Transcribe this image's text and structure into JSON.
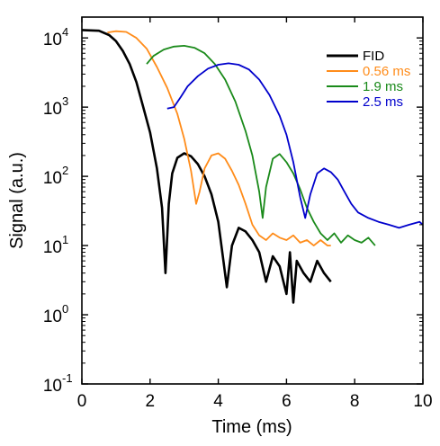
{
  "chart_data": {
    "type": "line",
    "xlabel": "Time (ms)",
    "ylabel": "Signal (a.u.)",
    "x_scale": "linear",
    "y_scale": "log",
    "xlim": [
      0,
      10
    ],
    "ylim": [
      0.1,
      20000
    ],
    "x_ticks": [
      0,
      2,
      4,
      6,
      8,
      10
    ],
    "x_tick_labels": [
      "0",
      "2",
      "4",
      "6",
      "8",
      "10"
    ],
    "y_ticks": [
      0.1,
      1,
      10,
      100,
      1000,
      10000
    ],
    "y_tick_labels": [
      {
        "base": "10",
        "exp": "-1"
      },
      {
        "base": "10",
        "exp": "0"
      },
      {
        "base": "10",
        "exp": "1"
      },
      {
        "base": "10",
        "exp": "2"
      },
      {
        "base": "10",
        "exp": "3"
      },
      {
        "base": "10",
        "exp": "4"
      }
    ],
    "grid": false,
    "legend_position": "top-right",
    "series": [
      {
        "name": "FID",
        "color": "#000000",
        "points": [
          [
            0,
            13000
          ],
          [
            0.5,
            12700
          ],
          [
            0.8,
            11000
          ],
          [
            1.0,
            9000
          ],
          [
            1.2,
            6500
          ],
          [
            1.4,
            4200
          ],
          [
            1.6,
            2300
          ],
          [
            1.8,
            1000
          ],
          [
            2.0,
            430
          ],
          [
            2.2,
            130
          ],
          [
            2.35,
            35
          ],
          [
            2.45,
            4
          ],
          [
            2.55,
            40
          ],
          [
            2.65,
            110
          ],
          [
            2.8,
            185
          ],
          [
            3.0,
            215
          ],
          [
            3.2,
            195
          ],
          [
            3.4,
            150
          ],
          [
            3.6,
            100
          ],
          [
            3.8,
            55
          ],
          [
            4.0,
            22
          ],
          [
            4.15,
            6
          ],
          [
            4.25,
            2.5
          ],
          [
            4.3,
            4
          ],
          [
            4.4,
            10
          ],
          [
            4.6,
            18
          ],
          [
            4.8,
            16
          ],
          [
            5.0,
            12
          ],
          [
            5.2,
            8
          ],
          [
            5.4,
            3
          ],
          [
            5.6,
            7
          ],
          [
            5.8,
            5
          ],
          [
            6.0,
            2
          ],
          [
            6.1,
            8
          ],
          [
            6.2,
            1.5
          ],
          [
            6.3,
            6
          ],
          [
            6.5,
            4
          ],
          [
            6.7,
            3
          ],
          [
            6.9,
            6
          ],
          [
            7.1,
            4
          ],
          [
            7.3,
            3
          ]
        ]
      },
      {
        "name": "0.56 ms",
        "color": "#ff8c1a",
        "points": [
          [
            0.75,
            12000
          ],
          [
            1.0,
            12500
          ],
          [
            1.3,
            12200
          ],
          [
            1.6,
            10000
          ],
          [
            1.9,
            7000
          ],
          [
            2.2,
            3800
          ],
          [
            2.5,
            1900
          ],
          [
            2.8,
            800
          ],
          [
            3.0,
            350
          ],
          [
            3.2,
            120
          ],
          [
            3.35,
            40
          ],
          [
            3.45,
            60
          ],
          [
            3.6,
            130
          ],
          [
            3.8,
            200
          ],
          [
            4.0,
            215
          ],
          [
            4.2,
            180
          ],
          [
            4.4,
            120
          ],
          [
            4.6,
            75
          ],
          [
            4.8,
            40
          ],
          [
            5.0,
            20
          ],
          [
            5.2,
            14
          ],
          [
            5.4,
            12
          ],
          [
            5.6,
            15
          ],
          [
            5.8,
            13
          ],
          [
            6.0,
            12
          ],
          [
            6.2,
            14
          ],
          [
            6.4,
            11
          ],
          [
            6.6,
            12
          ],
          [
            6.8,
            10
          ],
          [
            7.0,
            12
          ],
          [
            7.2,
            10
          ],
          [
            7.3,
            10
          ]
        ]
      },
      {
        "name": "1.9 ms",
        "color": "#1a8a1a",
        "points": [
          [
            1.9,
            4200
          ],
          [
            2.1,
            5500
          ],
          [
            2.4,
            6800
          ],
          [
            2.7,
            7500
          ],
          [
            3.0,
            7700
          ],
          [
            3.3,
            7200
          ],
          [
            3.6,
            6000
          ],
          [
            3.9,
            4200
          ],
          [
            4.2,
            2500
          ],
          [
            4.5,
            1200
          ],
          [
            4.8,
            450
          ],
          [
            5.0,
            200
          ],
          [
            5.2,
            60
          ],
          [
            5.3,
            25
          ],
          [
            5.4,
            70
          ],
          [
            5.6,
            180
          ],
          [
            5.8,
            210
          ],
          [
            6.0,
            160
          ],
          [
            6.2,
            110
          ],
          [
            6.4,
            65
          ],
          [
            6.6,
            35
          ],
          [
            6.8,
            22
          ],
          [
            7.0,
            15
          ],
          [
            7.2,
            12
          ],
          [
            7.4,
            15
          ],
          [
            7.6,
            11
          ],
          [
            7.8,
            14
          ],
          [
            8.0,
            12
          ],
          [
            8.2,
            11
          ],
          [
            8.4,
            13
          ],
          [
            8.6,
            10
          ]
        ]
      },
      {
        "name": "2.5 ms",
        "color": "#0000cc",
        "points": [
          [
            2.5,
            950
          ],
          [
            2.7,
            1000
          ],
          [
            2.9,
            1400
          ],
          [
            3.1,
            2000
          ],
          [
            3.4,
            2800
          ],
          [
            3.7,
            3600
          ],
          [
            4.0,
            4100
          ],
          [
            4.3,
            4300
          ],
          [
            4.6,
            4100
          ],
          [
            4.9,
            3500
          ],
          [
            5.2,
            2500
          ],
          [
            5.5,
            1500
          ],
          [
            5.8,
            750
          ],
          [
            6.0,
            400
          ],
          [
            6.2,
            160
          ],
          [
            6.4,
            50
          ],
          [
            6.55,
            25
          ],
          [
            6.7,
            55
          ],
          [
            6.9,
            110
          ],
          [
            7.1,
            130
          ],
          [
            7.3,
            115
          ],
          [
            7.5,
            90
          ],
          [
            7.7,
            60
          ],
          [
            7.9,
            40
          ],
          [
            8.1,
            30
          ],
          [
            8.4,
            25
          ],
          [
            8.7,
            22
          ],
          [
            9.0,
            20
          ],
          [
            9.3,
            18
          ],
          [
            9.6,
            20
          ],
          [
            9.9,
            22
          ],
          [
            10.0,
            20
          ]
        ]
      }
    ]
  }
}
